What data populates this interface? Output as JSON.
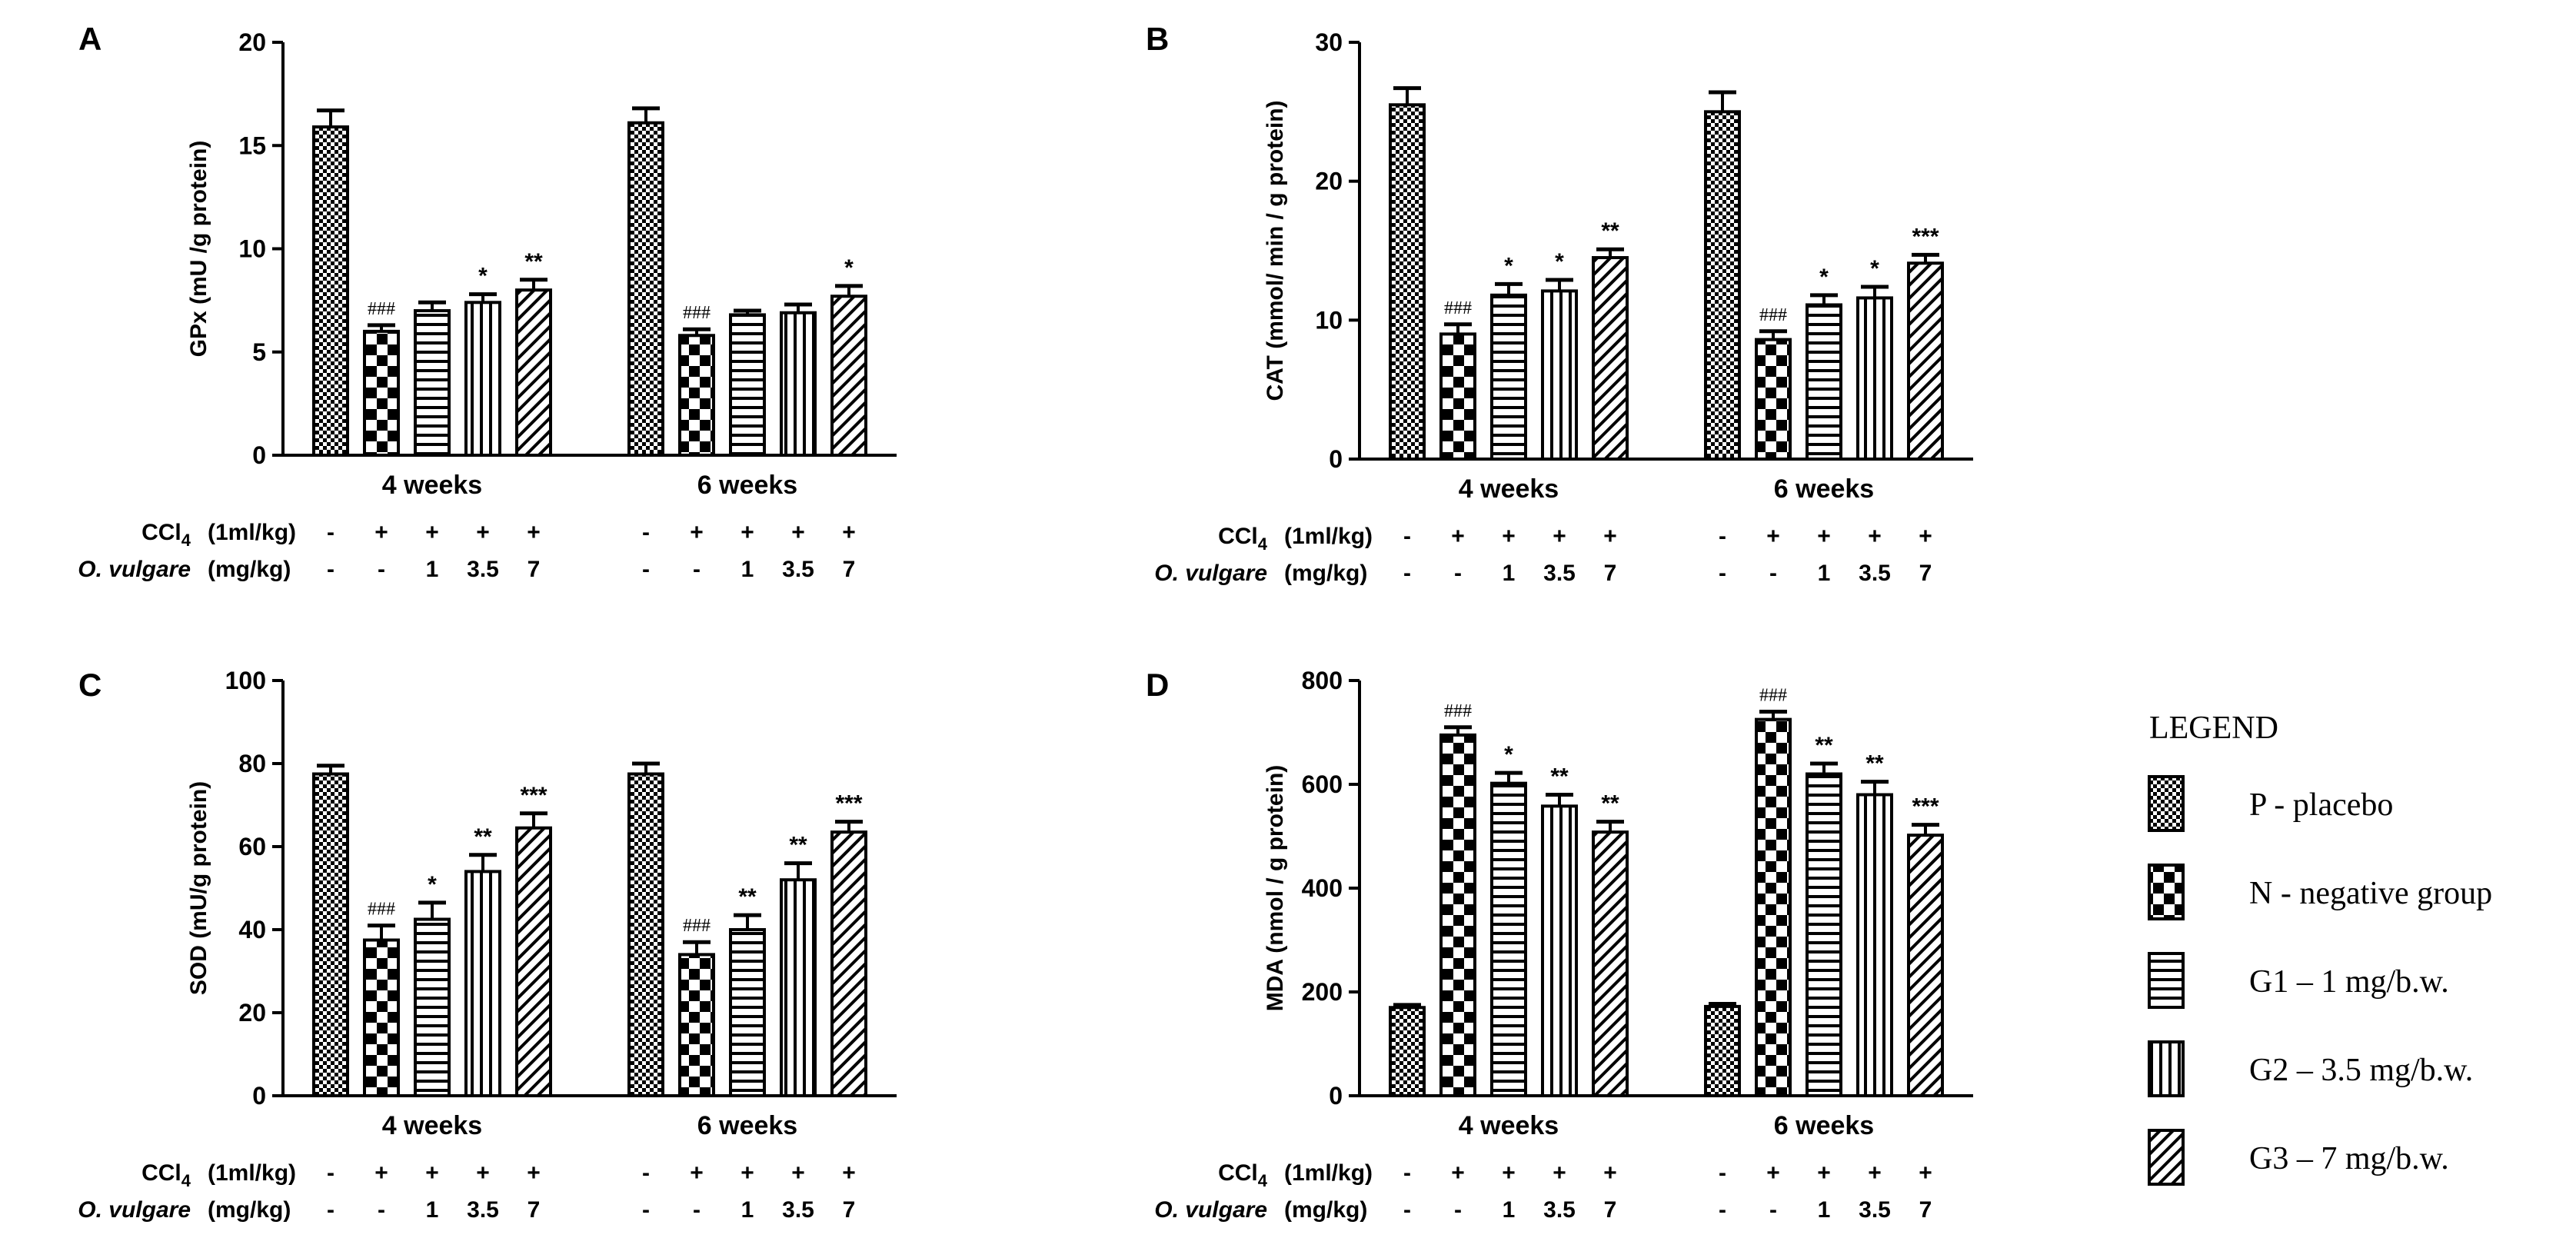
{
  "colors": {
    "ink": "#000000",
    "paper": "#ffffff"
  },
  "treatment_rows": [
    {
      "label": "CCl",
      "subscript": "4",
      "unit": "(1ml/kg)",
      "italic": false,
      "values": [
        "-",
        "+",
        "+",
        "+",
        "+"
      ]
    },
    {
      "label": "O. vulgare",
      "subscript": "",
      "unit": "(mg/kg)",
      "italic": true,
      "values": [
        "-",
        "-",
        "1",
        "3.5",
        "7"
      ]
    }
  ],
  "legend": {
    "title": "LEGEND",
    "entries": [
      {
        "label": "P - placebo",
        "pattern": "fine-check"
      },
      {
        "label": "N - negative group",
        "pattern": "coarse-check"
      },
      {
        "label": "G1 – 1 mg/b.w.",
        "pattern": "horizontal"
      },
      {
        "label": "G2 – 3.5 mg/b.w.",
        "pattern": "vertical"
      },
      {
        "label": "G3 – 7 mg/b.w.",
        "pattern": "diagonal"
      }
    ]
  },
  "chart_data": [
    {
      "panel": "A",
      "type": "bar",
      "ylabel": "GPx (mU /g protein)",
      "ylim": [
        0,
        20
      ],
      "yticks": [
        0,
        5,
        10,
        15,
        20
      ],
      "categories": [
        "4 weeks",
        "6 weeks"
      ],
      "series": [
        {
          "name": "P - placebo",
          "values": [
            15.9,
            16.1
          ],
          "errors": [
            0.8,
            0.7
          ],
          "sig": [
            "",
            ""
          ]
        },
        {
          "name": "N - negative group",
          "values": [
            6.0,
            5.8
          ],
          "errors": [
            0.3,
            0.3
          ],
          "sig": [
            "###",
            "###"
          ]
        },
        {
          "name": "G1 – 1 mg/b.w.",
          "values": [
            7.0,
            6.8
          ],
          "errors": [
            0.4,
            0.2
          ],
          "sig": [
            "",
            ""
          ]
        },
        {
          "name": "G2 – 3.5 mg/b.w.",
          "values": [
            7.4,
            6.9
          ],
          "errors": [
            0.4,
            0.4
          ],
          "sig": [
            "*",
            ""
          ]
        },
        {
          "name": "G3 – 7 mg/b.w.",
          "values": [
            8.0,
            7.7
          ],
          "errors": [
            0.5,
            0.5
          ],
          "sig": [
            "**",
            "*"
          ]
        }
      ]
    },
    {
      "panel": "B",
      "type": "bar",
      "ylabel": "CAT (mmol/ min / g protein)",
      "ylim": [
        0,
        30
      ],
      "yticks": [
        0,
        10,
        20,
        30
      ],
      "categories": [
        "4 weeks",
        "6 weeks"
      ],
      "series": [
        {
          "name": "P - placebo",
          "values": [
            25.5,
            25.0
          ],
          "errors": [
            1.2,
            1.4
          ],
          "sig": [
            "",
            ""
          ]
        },
        {
          "name": "N - negative group",
          "values": [
            9.0,
            8.6
          ],
          "errors": [
            0.7,
            0.6
          ],
          "sig": [
            "###",
            "###"
          ]
        },
        {
          "name": "G1 – 1 mg/b.w.",
          "values": [
            11.8,
            11.1
          ],
          "errors": [
            0.8,
            0.7
          ],
          "sig": [
            "*",
            "*"
          ]
        },
        {
          "name": "G2 – 3.5 mg/b.w.",
          "values": [
            12.1,
            11.6
          ],
          "errors": [
            0.8,
            0.8
          ],
          "sig": [
            "*",
            "*"
          ]
        },
        {
          "name": "G3 – 7 mg/b.w.",
          "values": [
            14.5,
            14.1
          ],
          "errors": [
            0.6,
            0.6
          ],
          "sig": [
            "**",
            "***"
          ]
        }
      ]
    },
    {
      "panel": "C",
      "type": "bar",
      "ylabel": "SOD (mU/g protein)",
      "ylim": [
        0,
        100
      ],
      "yticks": [
        0,
        20,
        40,
        60,
        80,
        100
      ],
      "categories": [
        "4 weeks",
        "6 weeks"
      ],
      "series": [
        {
          "name": "P - placebo",
          "values": [
            77.5,
            77.5
          ],
          "errors": [
            2.0,
            2.5
          ],
          "sig": [
            "",
            ""
          ]
        },
        {
          "name": "N - negative group",
          "values": [
            37.5,
            34.0
          ],
          "errors": [
            3.5,
            3.0
          ],
          "sig": [
            "###",
            "###"
          ]
        },
        {
          "name": "G1 – 1 mg/b.w.",
          "values": [
            42.5,
            40.0
          ],
          "errors": [
            4.0,
            3.5
          ],
          "sig": [
            "*",
            "**"
          ]
        },
        {
          "name": "G2 – 3.5 mg/b.w.",
          "values": [
            54.0,
            52.0
          ],
          "errors": [
            4.0,
            4.0
          ],
          "sig": [
            "**",
            "**"
          ]
        },
        {
          "name": "G3 – 7 mg/b.w.",
          "values": [
            64.5,
            63.5
          ],
          "errors": [
            3.5,
            2.5
          ],
          "sig": [
            "***",
            "***"
          ]
        }
      ]
    },
    {
      "panel": "D",
      "type": "bar",
      "ylabel": "MDA (nmol / g protein)",
      "ylim": [
        0,
        800
      ],
      "yticks": [
        0,
        200,
        400,
        600,
        800
      ],
      "categories": [
        "4 weeks",
        "6 weeks"
      ],
      "series": [
        {
          "name": "P - placebo",
          "values": [
            170,
            172
          ],
          "errors": [
            5,
            5
          ],
          "sig": [
            "",
            ""
          ]
        },
        {
          "name": "N - negative group",
          "values": [
            695,
            725
          ],
          "errors": [
            15,
            15
          ],
          "sig": [
            "###",
            "###"
          ]
        },
        {
          "name": "G1 – 1 mg/b.w.",
          "values": [
            602,
            620
          ],
          "errors": [
            20,
            20
          ],
          "sig": [
            "*",
            "**"
          ]
        },
        {
          "name": "G2 – 3.5 mg/b.w.",
          "values": [
            558,
            580
          ],
          "errors": [
            22,
            25
          ],
          "sig": [
            "**",
            "**"
          ]
        },
        {
          "name": "G3 – 7 mg/b.w.",
          "values": [
            508,
            502
          ],
          "errors": [
            20,
            20
          ],
          "sig": [
            "**",
            "***"
          ]
        }
      ]
    }
  ]
}
